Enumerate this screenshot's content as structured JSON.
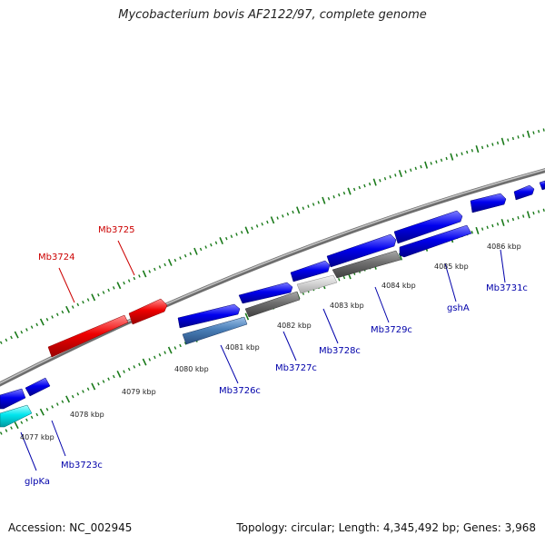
{
  "header": {
    "title": "Mycobacterium bovis AF2122/97, complete genome"
  },
  "footer": {
    "accession": "Accession: NC_002945",
    "summary": "Topology: circular; Length: 4,345,492 bp; Genes: 3,968"
  },
  "kbp_labels": [
    "4077 kbp",
    "4078 kbp",
    "4079 kbp",
    "4080 kbp",
    "4081 kbp",
    "4082 kbp",
    "4083 kbp",
    "4084 kbp",
    "4085 kbp",
    "4086 kbp"
  ],
  "gene_labels": {
    "forward": [
      "Mb3724",
      "Mb3725"
    ],
    "reverse": [
      "glpKa",
      "Mb3723c",
      "Mb3726c",
      "Mb3727c",
      "Mb3728c",
      "Mb3729c",
      "gshA",
      "Mb3731c"
    ]
  },
  "colors": {
    "forward_label": "#cc0000",
    "reverse_label": "#0000aa",
    "forward_gene": "#ff0000",
    "reverse_gene": "#0000ee",
    "backbone": "#888888",
    "tick": "#1a7a1a"
  }
}
